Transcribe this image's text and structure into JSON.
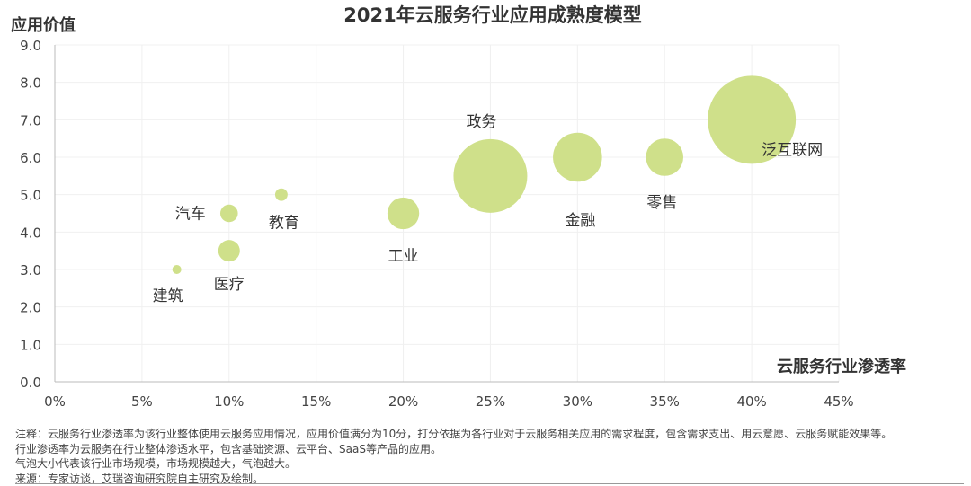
{
  "chart_data": {
    "type": "scatter",
    "subtype": "bubble",
    "title": "2021年云服务行业应用成熟度模型",
    "xlabel": "云服务行业渗透率",
    "ylabel": "应用价值",
    "xlim": [
      0,
      45
    ],
    "ylim": [
      0,
      9
    ],
    "x_ticks": [
      "0%",
      "5%",
      "10%",
      "15%",
      "20%",
      "25%",
      "30%",
      "35%",
      "40%",
      "45%"
    ],
    "y_ticks": [
      "0.0",
      "1.0",
      "2.0",
      "3.0",
      "4.0",
      "5.0",
      "6.0",
      "7.0",
      "8.0",
      "9.0"
    ],
    "grid": true,
    "bubble_color": "#cfe08a",
    "points": [
      {
        "label": "建筑",
        "x": 7,
        "y": 3.0,
        "size": 1
      },
      {
        "label": "汽车",
        "x": 10,
        "y": 4.5,
        "size": 4
      },
      {
        "label": "医疗",
        "x": 10,
        "y": 3.5,
        "size": 6
      },
      {
        "label": "教育",
        "x": 13,
        "y": 5.0,
        "size": 2
      },
      {
        "label": "工业",
        "x": 20,
        "y": 4.5,
        "size": 13
      },
      {
        "label": "政务",
        "x": 25,
        "y": 5.5,
        "size": 70
      },
      {
        "label": "金融",
        "x": 30,
        "y": 6.0,
        "size": 31
      },
      {
        "label": "零售",
        "x": 35,
        "y": 6.0,
        "size": 18
      },
      {
        "label": "泛互联网",
        "x": 40,
        "y": 7.0,
        "size": 100
      }
    ]
  },
  "notes": [
    "注释：云服务行业渗透率为该行业整体使用云服务应用情况，应用价值满分为10分，打分依据为各行业对于云服务相关应用的需求程度，包含需求支出、用云意愿、云服务赋能效果等。",
    "行业渗透率为云服务在行业整体渗透水平，包含基础资源、云平台、SaaS等产品的应用。",
    "气泡大小代表该行业市场规模，市场规模越大，气泡越大。",
    "来源：专家访谈，艾瑞咨询研究院自主研究及绘制。"
  ]
}
